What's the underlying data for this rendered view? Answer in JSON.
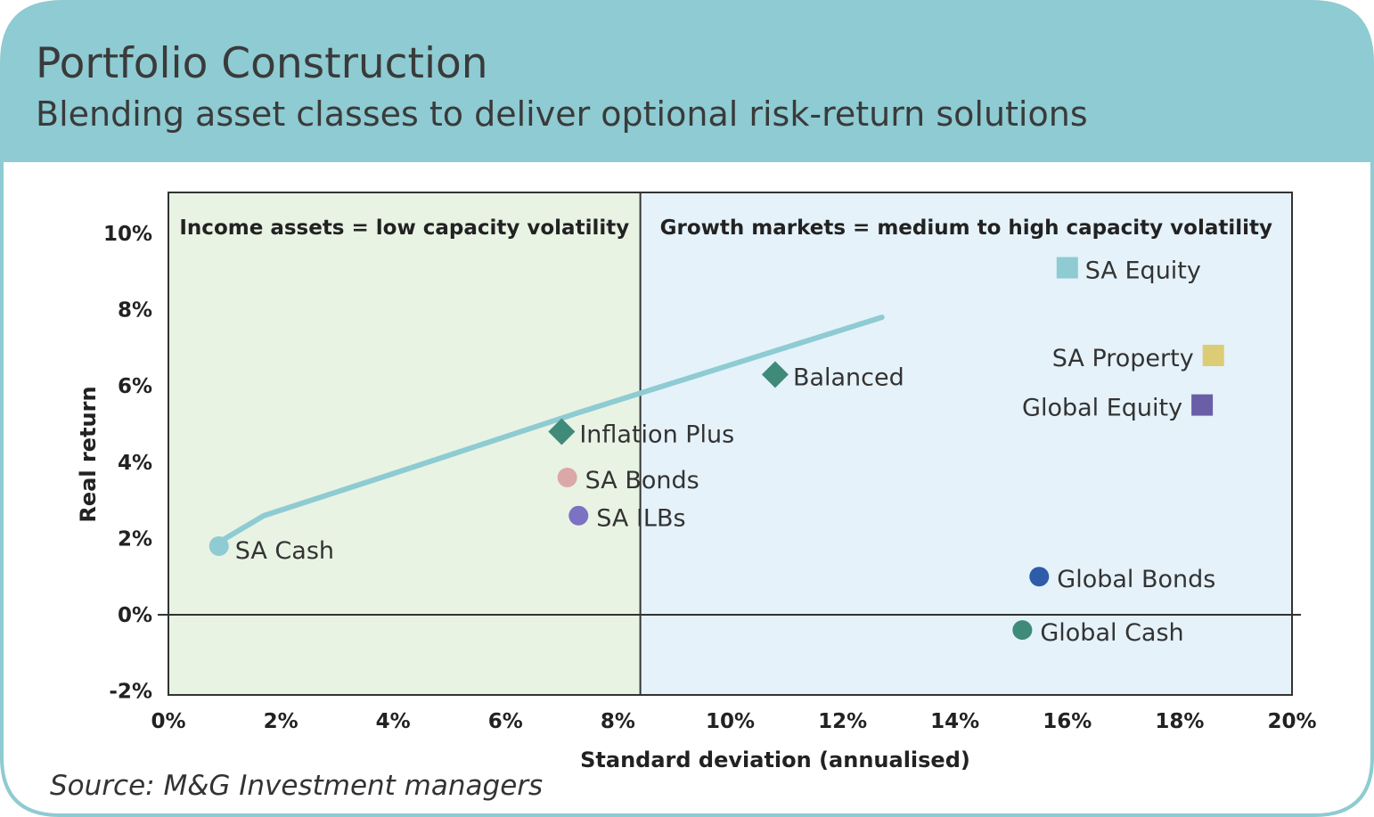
{
  "header": {
    "title": "Portfolio Construction",
    "subtitle": "Blending asset classes to deliver optional risk-return solutions"
  },
  "source": "Source: M&G Investment managers",
  "colors": {
    "header_band": "#8ecbd2",
    "border": "#8ecbd2",
    "income_zone": "#e8f3e4",
    "growth_zone": "#e5f2fa",
    "frontier_line": "#8ecbd2"
  },
  "chart_data": {
    "type": "scatter",
    "xlabel": "Standard deviation (annualised)",
    "ylabel": "Real return",
    "xlim": [
      0,
      20
    ],
    "ylim": [
      -2,
      11
    ],
    "x_ticks": [
      0,
      2,
      4,
      6,
      8,
      10,
      12,
      14,
      16,
      18,
      20
    ],
    "x_tick_labels": [
      "0%",
      "2%",
      "4%",
      "6%",
      "8%",
      "10%",
      "12%",
      "14%",
      "16%",
      "18%",
      "20%"
    ],
    "y_ticks": [
      -2,
      0,
      2,
      4,
      6,
      8,
      10
    ],
    "y_tick_labels": [
      "-2%",
      "0%",
      "2%",
      "4%",
      "6%",
      "8%",
      "10%"
    ],
    "zone_divider_x": 8.4,
    "zones": [
      {
        "label": "Income assets = low capacity volatility",
        "from": 0,
        "to": 8.4,
        "color": "#e8f3e4"
      },
      {
        "label": "Growth markets = medium to high capacity volatility",
        "from": 8.4,
        "to": 20,
        "color": "#e5f2fa"
      }
    ],
    "frontier": {
      "color": "#8ecbd2",
      "x": [
        0.9,
        1.7,
        4.0,
        7.3,
        12.7
      ],
      "y": [
        1.9,
        2.6,
        3.7,
        5.3,
        7.8
      ]
    },
    "points": [
      {
        "label": "SA Cash",
        "x": 0.9,
        "y": 1.8,
        "shape": "circle",
        "color": "#8ecbd2",
        "label_pos": "right-below"
      },
      {
        "label": "Inflation Plus",
        "x": 7.0,
        "y": 4.8,
        "shape": "diamond",
        "color": "#3f8a79",
        "label_pos": "right"
      },
      {
        "label": "SA Bonds",
        "x": 7.1,
        "y": 3.6,
        "shape": "circle",
        "color": "#dba8a8",
        "label_pos": "right"
      },
      {
        "label": "SA ILBs",
        "x": 7.3,
        "y": 2.6,
        "shape": "circle",
        "color": "#7b72c3",
        "label_pos": "right"
      },
      {
        "label": "Balanced",
        "x": 10.8,
        "y": 6.3,
        "shape": "diamond",
        "color": "#3f8a79",
        "label_pos": "right"
      },
      {
        "label": "SA Equity",
        "x": 16.0,
        "y": 9.1,
        "shape": "square",
        "color": "#8ecbd2",
        "label_pos": "right"
      },
      {
        "label": "SA Property",
        "x": 18.6,
        "y": 6.8,
        "shape": "square",
        "color": "#dccc75",
        "label_pos": "left"
      },
      {
        "label": "Global Equity",
        "x": 18.4,
        "y": 5.5,
        "shape": "square",
        "color": "#6a5fa6",
        "label_pos": "left"
      },
      {
        "label": "Global Bonds",
        "x": 15.5,
        "y": 1.0,
        "shape": "circle",
        "color": "#2e5ca8",
        "label_pos": "right"
      },
      {
        "label": "Global Cash",
        "x": 15.2,
        "y": -0.4,
        "shape": "circle",
        "color": "#3f8a79",
        "label_pos": "right"
      }
    ]
  }
}
